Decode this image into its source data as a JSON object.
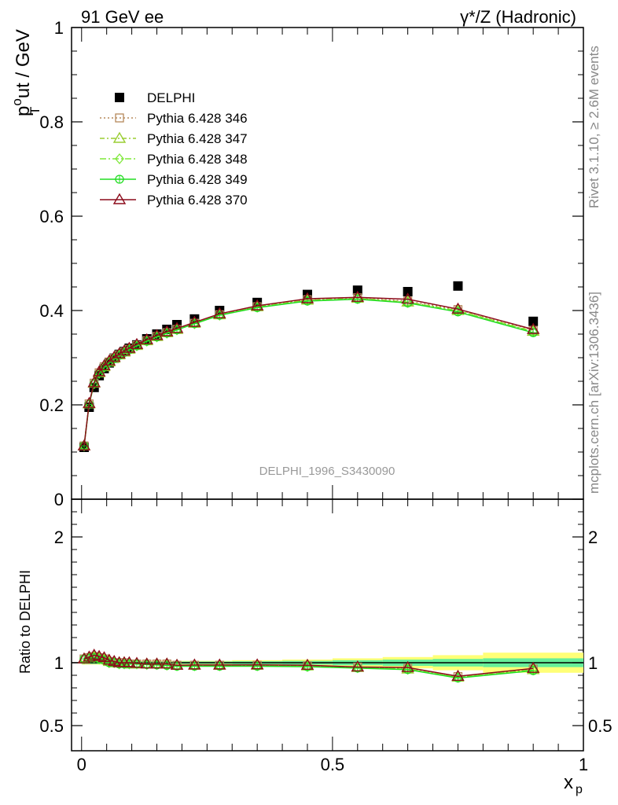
{
  "header": {
    "left": "91 GeV ee",
    "right": "γ*/Z (Hadronic)"
  },
  "side_labels": {
    "rivet": "Rivet 3.1.10, ≥ 2.6M events",
    "mcplots": "mcplots.cern.ch [arXiv:1306.3436]"
  },
  "analysis_label": "DELPHI_1996_S3430090",
  "ylabel_main": "p_T^out / GeV",
  "ylabel_ratio": "Ratio to DELPHI",
  "xlabel": "x_p",
  "chart_data": [
    {
      "type": "line",
      "panel": "main",
      "xlim": [
        -0.02,
        1.0
      ],
      "ylim": [
        0.0,
        1.0
      ],
      "yticks": [
        "0",
        "0.2",
        "0.4",
        "0.6",
        "0.8",
        "1"
      ],
      "ytick_values": [
        0,
        0.2,
        0.4,
        0.6,
        0.8,
        1.0
      ],
      "x": [
        0.005,
        0.015,
        0.025,
        0.035,
        0.045,
        0.055,
        0.065,
        0.075,
        0.085,
        0.095,
        0.11,
        0.13,
        0.15,
        0.17,
        0.19,
        0.225,
        0.275,
        0.35,
        0.45,
        0.55,
        0.65,
        0.75,
        0.9
      ],
      "series": [
        {
          "name": "DELPHI",
          "color": "#000000",
          "marker": "square-filled",
          "values": [
            0.11,
            0.195,
            0.237,
            0.262,
            0.277,
            0.289,
            0.299,
            0.307,
            0.313,
            0.32,
            0.327,
            0.34,
            0.35,
            0.36,
            0.37,
            0.382,
            0.4,
            0.417,
            0.434,
            0.443,
            0.44,
            0.452,
            0.377
          ]
        },
        {
          "name": "Pythia 6.428 346",
          "color": "#b5885a",
          "marker": "square-open",
          "dash": "2,3",
          "values": [
            0.113,
            0.202,
            0.246,
            0.268,
            0.281,
            0.291,
            0.299,
            0.306,
            0.312,
            0.318,
            0.326,
            0.336,
            0.345,
            0.353,
            0.36,
            0.373,
            0.391,
            0.408,
            0.423,
            0.427,
            0.42,
            0.402,
            0.358
          ]
        },
        {
          "name": "Pythia 6.428 347",
          "color": "#9acd32",
          "marker": "triangle-open",
          "dash": "6,3,2,3",
          "values": [
            0.113,
            0.202,
            0.246,
            0.268,
            0.281,
            0.291,
            0.299,
            0.306,
            0.312,
            0.318,
            0.326,
            0.336,
            0.345,
            0.353,
            0.36,
            0.373,
            0.391,
            0.408,
            0.422,
            0.426,
            0.418,
            0.4,
            0.356
          ]
        },
        {
          "name": "Pythia 6.428 348",
          "color": "#7fe83a",
          "marker": "diamond-open",
          "dash": "8,3,2,3",
          "values": [
            0.113,
            0.202,
            0.245,
            0.267,
            0.28,
            0.29,
            0.298,
            0.305,
            0.311,
            0.317,
            0.325,
            0.335,
            0.344,
            0.352,
            0.359,
            0.372,
            0.39,
            0.407,
            0.421,
            0.425,
            0.417,
            0.399,
            0.355
          ]
        },
        {
          "name": "Pythia 6.428 349",
          "color": "#22dd22",
          "marker": "circle-cross",
          "dash": "",
          "values": [
            0.113,
            0.201,
            0.245,
            0.267,
            0.28,
            0.29,
            0.298,
            0.305,
            0.311,
            0.317,
            0.325,
            0.335,
            0.344,
            0.352,
            0.359,
            0.372,
            0.39,
            0.406,
            0.42,
            0.424,
            0.416,
            0.397,
            0.353
          ]
        },
        {
          "name": "Pythia 6.428 370",
          "color": "#8b0a1a",
          "marker": "triangle-open",
          "dash": "",
          "values": [
            0.113,
            0.203,
            0.247,
            0.27,
            0.283,
            0.293,
            0.301,
            0.308,
            0.314,
            0.32,
            0.328,
            0.338,
            0.347,
            0.355,
            0.362,
            0.375,
            0.393,
            0.41,
            0.425,
            0.428,
            0.424,
            0.403,
            0.36
          ]
        }
      ]
    },
    {
      "type": "line",
      "panel": "ratio",
      "xlim": [
        -0.02,
        1.0
      ],
      "ylim": [
        0.3,
        2.3
      ],
      "yticks": [
        "0.5",
        "1",
        "2"
      ],
      "ytick_values": [
        0.5,
        1.0,
        2.0
      ],
      "xticks": [
        "0",
        "0.5",
        "1"
      ],
      "xtick_values": [
        0,
        0.5,
        1.0
      ],
      "x": [
        0.005,
        0.015,
        0.025,
        0.035,
        0.045,
        0.055,
        0.065,
        0.075,
        0.085,
        0.095,
        0.11,
        0.13,
        0.15,
        0.17,
        0.19,
        0.225,
        0.275,
        0.35,
        0.45,
        0.55,
        0.65,
        0.75,
        0.9
      ],
      "uncertainty_band": {
        "x_edges": [
          0,
          0.1,
          0.2,
          0.3,
          0.4,
          0.5,
          0.6,
          0.7,
          0.8,
          1.0
        ],
        "inner": [
          0.01,
          0.01,
          0.01,
          0.012,
          0.015,
          0.02,
          0.025,
          0.03,
          0.035
        ],
        "outer": [
          0.015,
          0.015,
          0.015,
          0.02,
          0.025,
          0.035,
          0.045,
          0.06,
          0.08
        ],
        "inner_color": "#66ee99",
        "outer_color": "#ffff77"
      },
      "series": [
        {
          "name": "Pythia 6.428 346",
          "color": "#b5885a",
          "marker": "square-open",
          "dash": "2,3",
          "values": [
            1.03,
            1.04,
            1.05,
            1.04,
            1.03,
            1.01,
            1.0,
            1.0,
            1.0,
            0.99,
            0.99,
            0.99,
            0.99,
            0.99,
            0.98,
            0.98,
            0.98,
            0.98,
            0.975,
            0.965,
            0.955,
            0.89,
            0.95
          ]
        },
        {
          "name": "Pythia 6.428 347",
          "color": "#9acd32",
          "marker": "triangle-open",
          "dash": "6,3,2,3",
          "values": [
            1.03,
            1.04,
            1.05,
            1.04,
            1.03,
            1.01,
            1.0,
            1.0,
            1.0,
            0.99,
            0.99,
            0.99,
            0.99,
            0.99,
            0.98,
            0.98,
            0.98,
            0.98,
            0.975,
            0.962,
            0.95,
            0.885,
            0.945
          ]
        },
        {
          "name": "Pythia 6.428 348",
          "color": "#7fe83a",
          "marker": "diamond-open",
          "dash": "8,3,2,3",
          "values": [
            1.03,
            1.04,
            1.04,
            1.03,
            1.02,
            1.0,
            1.0,
            0.99,
            0.99,
            0.99,
            0.99,
            0.985,
            0.985,
            0.98,
            0.975,
            0.975,
            0.975,
            0.975,
            0.97,
            0.96,
            0.948,
            0.882,
            0.942
          ]
        },
        {
          "name": "Pythia 6.428 349",
          "color": "#22dd22",
          "marker": "circle-cross",
          "dash": "",
          "values": [
            1.03,
            1.035,
            1.04,
            1.03,
            1.02,
            1.0,
            1.0,
            0.99,
            0.99,
            0.99,
            0.99,
            0.985,
            0.982,
            0.978,
            0.972,
            0.972,
            0.972,
            0.972,
            0.968,
            0.957,
            0.945,
            0.878,
            0.937
          ]
        },
        {
          "name": "Pythia 6.428 370",
          "color": "#8b0a1a",
          "marker": "triangle-open",
          "dash": "",
          "values": [
            1.03,
            1.045,
            1.06,
            1.05,
            1.04,
            1.02,
            1.01,
            1.0,
            1.0,
            1.0,
            0.995,
            0.99,
            0.99,
            0.99,
            0.98,
            0.982,
            0.982,
            0.983,
            0.98,
            0.966,
            0.962,
            0.892,
            0.955
          ]
        }
      ]
    }
  ]
}
